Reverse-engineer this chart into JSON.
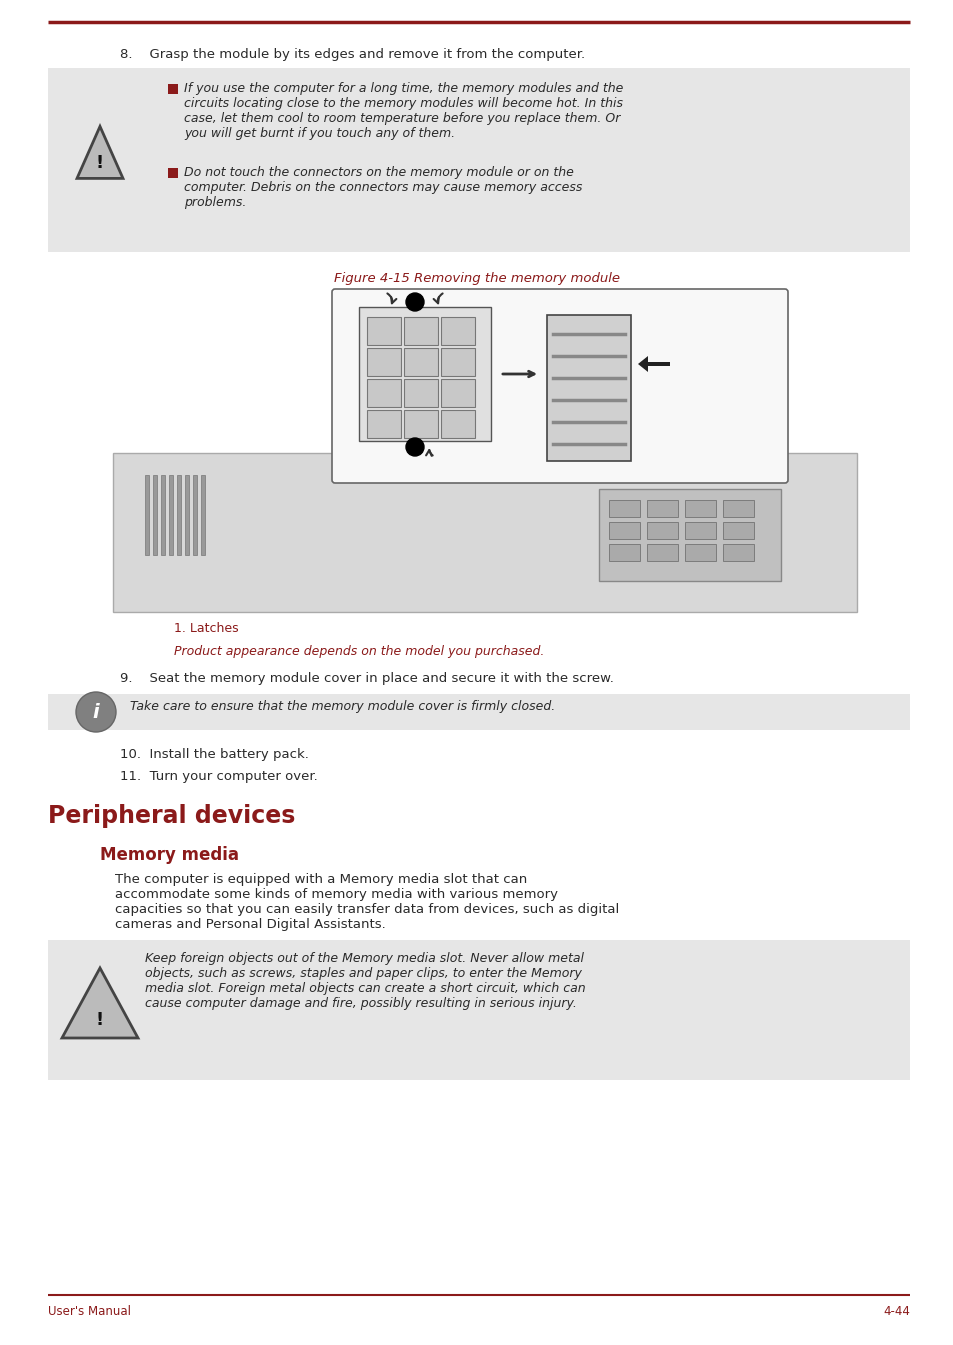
{
  "page_bg": "#ffffff",
  "line_color": "#8B1A1A",
  "step8_text": "8.    Grasp the module by its edges and remove it from the computer.",
  "warn1_text_a": "If you use the computer for a long time, the memory modules and the\ncircuits locating close to the memory modules will become hot. In this\ncase, let them cool to room temperature before you replace them. Or\nyou will get burnt if you touch any of them.",
  "warn1_text_b": "Do not touch the connectors on the memory module or on the\ncomputer. Debris on the connectors may cause memory access\nproblems.",
  "fig_caption": "Figure 4-15 Removing the memory module",
  "latches_text": "1. Latches",
  "product_text": "Product appearance depends on the model you purchased.",
  "step9_text": "9.    Seat the memory module cover in place and secure it with the screw.",
  "info_text": "Take care to ensure that the memory module cover is firmly closed.",
  "step10_text": "10.  Install the battery pack.",
  "step11_text": "11.  Turn your computer over.",
  "section_title": "Peripheral devices",
  "subsection_title": "Memory media",
  "body_text": "The computer is equipped with a Memory media slot that can\naccommodate some kinds of memory media with various memory\ncapacities so that you can easily transfer data from devices, such as digital\ncameras and Personal Digital Assistants.",
  "warn2_text": "Keep foreign objects out of the Memory media slot. Never allow metal\nobjects, such as screws, staples and paper clips, to enter the Memory\nmedia slot. Foreign metal objects can create a short circuit, which can\ncause computer damage and fire, possibly resulting in serious injury.",
  "footer_left": "User's Manual",
  "footer_right": "4-44",
  "red_color": "#8B1A1A",
  "text_color": "#2a2a2a",
  "box_bg": "#e6e6e6",
  "white": "#ffffff"
}
